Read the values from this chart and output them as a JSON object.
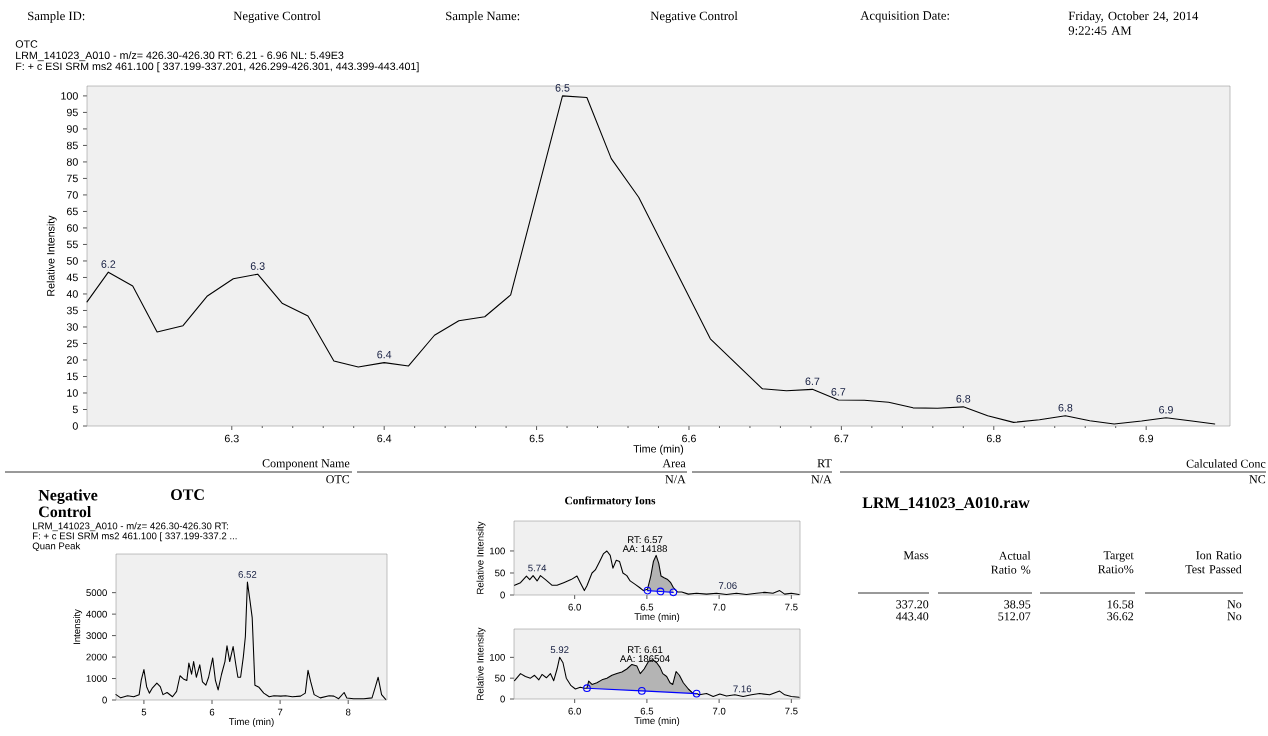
{
  "chart_data": [
    {
      "type": "other",
      "annotations": [
        "Sample ID:",
        "Negative Control",
        "Sample Name:",
        "Negative Control",
        "Acquisition Date:",
        "Friday, October 24, 2014 9:22:45 AM"
      ]
    },
    {
      "type": "line",
      "title": "OTC",
      "subtitle": "LRM_141023_A010 - m/z= 426.30-426.30 RT: 6.21 - 6.96 NL: 5.49E3",
      "xlabel": "Time (min)",
      "ylabel": "Relative Intensity",
      "color": "#000000",
      "annotations": [
        "F: + c ESI SRM ms2 461.100 [ 337.199-337.201, 426.299-426.301, 443.399-443.401]",
        {
          "text": "6.2",
          "x": 6.219,
          "y": 46.6
        },
        {
          "text": "6.3",
          "x": 6.317,
          "y": 46.0
        },
        {
          "text": "6.4",
          "x": 6.4,
          "y": 19.2
        },
        {
          "text": "6.5",
          "x": 6.517,
          "y": 100
        },
        {
          "text": "6.7",
          "x": 6.681,
          "y": 11.1
        },
        {
          "text": "6.7",
          "x": 6.698,
          "y": 7.9
        },
        {
          "text": "6.8",
          "x": 6.78,
          "y": 5.8
        },
        {
          "text": "6.8",
          "x": 6.847,
          "y": 3.1
        },
        {
          "text": "6.9",
          "x": 6.913,
          "y": 2.5
        }
      ],
      "x": [
        6.205,
        6.219,
        6.235,
        6.251,
        6.268,
        6.284,
        6.301,
        6.317,
        6.333,
        6.35,
        6.367,
        6.383,
        6.4,
        6.416,
        6.433,
        6.449,
        6.466,
        6.483,
        6.517,
        6.533,
        6.549,
        6.567,
        6.614,
        6.648,
        6.664,
        6.681,
        6.698,
        6.715,
        6.731,
        6.747,
        6.763,
        6.78,
        6.796,
        6.813,
        6.83,
        6.847,
        6.863,
        6.879,
        6.897,
        6.913,
        6.93,
        6.945
      ],
      "values": [
        37.6,
        46.6,
        42.4,
        28.5,
        30.4,
        39.4,
        44.6,
        46.0,
        37.2,
        33.3,
        19.7,
        17.9,
        19.2,
        18.2,
        27.5,
        31.9,
        33.1,
        39.7,
        100,
        99.5,
        81.0,
        69.3,
        26.4,
        11.3,
        10.7,
        11.1,
        7.9,
        7.8,
        7.2,
        5.5,
        5.4,
        5.8,
        3.1,
        1.1,
        1.9,
        3.1,
        1.6,
        0.6,
        1.5,
        2.5,
        1.5,
        0.6
      ],
      "xlim": [
        6.205,
        6.955
      ],
      "ylim": [
        0,
        103
      ],
      "xticks": [
        6.3,
        6.4,
        6.5,
        6.6,
        6.7,
        6.8,
        6.9
      ],
      "yticks": [
        0,
        5,
        10,
        15,
        20,
        25,
        30,
        35,
        40,
        45,
        50,
        55,
        60,
        65,
        70,
        75,
        80,
        85,
        90,
        95,
        100
      ]
    },
    {
      "type": "other",
      "annotations": [
        "Component Name",
        "OTC",
        "Area",
        "N/A",
        "RT",
        "N/A",
        "Calculated Conc",
        "NC"
      ]
    },
    {
      "type": "line",
      "title": "Negative Control",
      "subtitle": "OTC",
      "xlabel": "Time (min)",
      "ylabel": "Intensity",
      "color": "#000000",
      "annotations": [
        "LRM_141023_A010 - m/z= 426.30-426.30 RT:",
        "F: + c ESI SRM ms2 461.100 [ 337.199-337.2 ...",
        "Quan Peak",
        {
          "text": "6.52",
          "x": 6.52,
          "y": 5490
        }
      ],
      "x": [
        4.59,
        4.66,
        4.76,
        4.85,
        4.93,
        4.96,
        5.0,
        5.04,
        5.08,
        5.12,
        5.19,
        5.24,
        5.28,
        5.34,
        5.42,
        5.48,
        5.53,
        5.58,
        5.63,
        5.66,
        5.7,
        5.73,
        5.77,
        5.82,
        5.86,
        5.91,
        5.95,
        6.01,
        6.05,
        6.09,
        6.14,
        6.19,
        6.22,
        6.26,
        6.31,
        6.35,
        6.38,
        6.42,
        6.46,
        6.49,
        6.52,
        6.56,
        6.59,
        6.63,
        6.69,
        6.76,
        6.84,
        6.91,
        7.01,
        7.08,
        7.18,
        7.3,
        7.37,
        7.41,
        7.45,
        7.5,
        7.59,
        7.72,
        7.79,
        7.86,
        7.94,
        7.98,
        8.08,
        8.23,
        8.35,
        8.4,
        8.44,
        8.49,
        8.55
      ],
      "values": [
        250,
        100,
        200,
        150,
        250,
        910,
        1420,
        620,
        320,
        540,
        790,
        620,
        250,
        350,
        150,
        400,
        1130,
        980,
        910,
        1720,
        1200,
        1790,
        1060,
        1640,
        840,
        690,
        1060,
        1960,
        910,
        470,
        1200,
        1790,
        2520,
        1790,
        2490,
        1640,
        1060,
        1060,
        2010,
        2960,
        5490,
        4570,
        3840,
        690,
        590,
        320,
        150,
        200,
        180,
        200,
        150,
        180,
        320,
        1380,
        840,
        250,
        100,
        200,
        180,
        60,
        350,
        90,
        60,
        60,
        100,
        620,
        1060,
        250,
        30
      ],
      "xlim": [
        4.59,
        8.57
      ],
      "ylim": [
        0,
        6800
      ],
      "xticks": [
        5,
        6,
        7,
        8
      ],
      "yticks": [
        0,
        1000,
        2000,
        3000,
        4000,
        5000
      ]
    },
    {
      "type": "line",
      "title": "Confirmatory Ions",
      "xlabel": "Time (min)",
      "ylabel": "Relative Intensity",
      "annotations": [
        "RT: 6.57",
        "AA: 14188",
        {
          "text": "5.74",
          "x": 5.74,
          "y": 44
        },
        {
          "text": "7.06",
          "x": 7.06,
          "y": 4
        }
      ],
      "series": [
        {
          "type": "area",
          "color": "#b4b4b4",
          "x": [
            6.504,
            6.527,
            6.545,
            6.564,
            6.582,
            6.598,
            6.619,
            6.644,
            6.665,
            6.683,
            6.683
          ],
          "values": [
            10,
            43,
            76,
            90,
            72,
            43,
            39,
            35,
            28,
            17,
            6
          ]
        },
        {
          "type": "line",
          "color": "#000000",
          "x": [
            5.584,
            5.625,
            5.666,
            5.689,
            5.712,
            5.74,
            5.763,
            5.798,
            5.844,
            5.878,
            5.924,
            5.975,
            6.016,
            6.039,
            6.067,
            6.085,
            6.12,
            6.143,
            6.173,
            6.2,
            6.223,
            6.246,
            6.265,
            6.288,
            6.311,
            6.334,
            6.361,
            6.384,
            6.419,
            6.449,
            6.476,
            6.504,
            6.527,
            6.545,
            6.564,
            6.582,
            6.598,
            6.619,
            6.644,
            6.665,
            6.683,
            6.711,
            6.741,
            6.787,
            6.844,
            6.913,
            6.982,
            7.051,
            7.12,
            7.189,
            7.258,
            7.316,
            7.373,
            7.419,
            7.454,
            7.5,
            7.553
          ],
          "values": [
            22,
            28,
            43,
            35,
            44,
            32,
            44,
            35,
            22,
            22,
            28,
            35,
            43,
            28,
            10,
            21,
            50,
            57,
            76,
            94,
            100,
            90,
            61,
            79,
            76,
            50,
            44,
            32,
            24,
            17,
            10,
            13,
            43,
            76,
            90,
            72,
            43,
            39,
            35,
            28,
            17,
            7,
            7,
            2,
            4,
            2,
            4,
            1,
            4,
            1,
            4,
            6,
            4,
            10,
            2,
            4,
            1
          ]
        },
        {
          "type": "line",
          "color": "#0000ff",
          "marker": "circle",
          "x": [
            6.504,
            6.594,
            6.683
          ],
          "values": [
            10,
            8,
            6
          ]
        }
      ],
      "xlim": [
        5.58,
        7.56
      ],
      "ylim": [
        0,
        168
      ],
      "xticks": [
        {
          "value": 6,
          "label": "6.0"
        },
        {
          "value": 6.5,
          "label": "6.5"
        },
        {
          "value": 7,
          "label": "7.0"
        },
        {
          "value": 7.5,
          "label": "7.5"
        }
      ],
      "yticks": [
        0,
        50,
        100
      ]
    },
    {
      "type": "line",
      "xlabel": "Time (min)",
      "ylabel": "Relative Intensity",
      "annotations": [
        "RT: 6.61",
        "AA: 186504",
        {
          "text": "5.92",
          "x": 5.896,
          "y": 100
        },
        {
          "text": "7.16",
          "x": 7.16,
          "y": 6
        }
      ],
      "series": [
        {
          "type": "area",
          "color": "#b4b4b4",
          "x": [
            6.085,
            6.097,
            6.12,
            6.154,
            6.189,
            6.223,
            6.258,
            6.292,
            6.327,
            6.361,
            6.396,
            6.431,
            6.454,
            6.481,
            6.511,
            6.541,
            6.568,
            6.591,
            6.61,
            6.637,
            6.66,
            6.679,
            6.702,
            6.725,
            6.752,
            6.787,
            6.821,
            6.844
          ],
          "values": [
            26,
            43,
            35,
            39,
            46,
            50,
            57,
            61,
            65,
            72,
            83,
            79,
            61,
            72,
            90,
            94,
            87,
            76,
            61,
            54,
            39,
            35,
            66,
            57,
            39,
            24,
            13,
            13
          ]
        },
        {
          "type": "line",
          "color": "#000000",
          "x": [
            5.584,
            5.625,
            5.659,
            5.694,
            5.722,
            5.752,
            5.774,
            5.804,
            5.832,
            5.855,
            5.878,
            5.896,
            5.919,
            5.942,
            5.975,
            6.005,
            6.039,
            6.067,
            6.085,
            6.097,
            6.12,
            6.154,
            6.189,
            6.223,
            6.258,
            6.292,
            6.327,
            6.361,
            6.396,
            6.431,
            6.454,
            6.481,
            6.511,
            6.541,
            6.568,
            6.591,
            6.61,
            6.637,
            6.66,
            6.679,
            6.702,
            6.725,
            6.752,
            6.787,
            6.821,
            6.844,
            6.863,
            6.913,
            6.959,
            7.005,
            7.051,
            7.109,
            7.166,
            7.224,
            7.281,
            7.35,
            7.419,
            7.454,
            7.5,
            7.553
          ],
          "values": [
            44,
            61,
            54,
            50,
            57,
            46,
            59,
            51,
            61,
            44,
            72,
            100,
            87,
            50,
            32,
            24,
            28,
            26,
            26,
            43,
            35,
            39,
            46,
            50,
            57,
            61,
            65,
            72,
            83,
            79,
            61,
            72,
            90,
            94,
            87,
            76,
            61,
            54,
            39,
            35,
            66,
            57,
            39,
            24,
            13,
            13,
            10,
            13,
            6,
            12,
            7,
            10,
            6,
            10,
            13,
            10,
            19,
            10,
            6,
            4
          ]
        },
        {
          "type": "line",
          "color": "#0000ff",
          "marker": "circle",
          "x": [
            6.085,
            6.465,
            6.844
          ],
          "values": [
            26,
            19.5,
            13
          ]
        }
      ],
      "xlim": [
        5.58,
        7.56
      ],
      "ylim": [
        0,
        168
      ],
      "xticks": [
        {
          "value": 6,
          "label": "6.0"
        },
        {
          "value": 6.5,
          "label": "6.5"
        },
        {
          "value": 7,
          "label": "7.0"
        },
        {
          "value": 7.5,
          "label": "7.5"
        }
      ],
      "yticks": [
        0,
        50,
        100
      ]
    },
    {
      "type": "other",
      "title": "LRM_141023_A010.raw",
      "annotations": [
        "Mass",
        "Actual Ratio %",
        "Target Ratio%",
        "Ion Ratio Test Passed",
        "337.20",
        "38.95",
        "16.58",
        "No",
        "443.40",
        "512.07",
        "36.62",
        "No"
      ]
    }
  ]
}
